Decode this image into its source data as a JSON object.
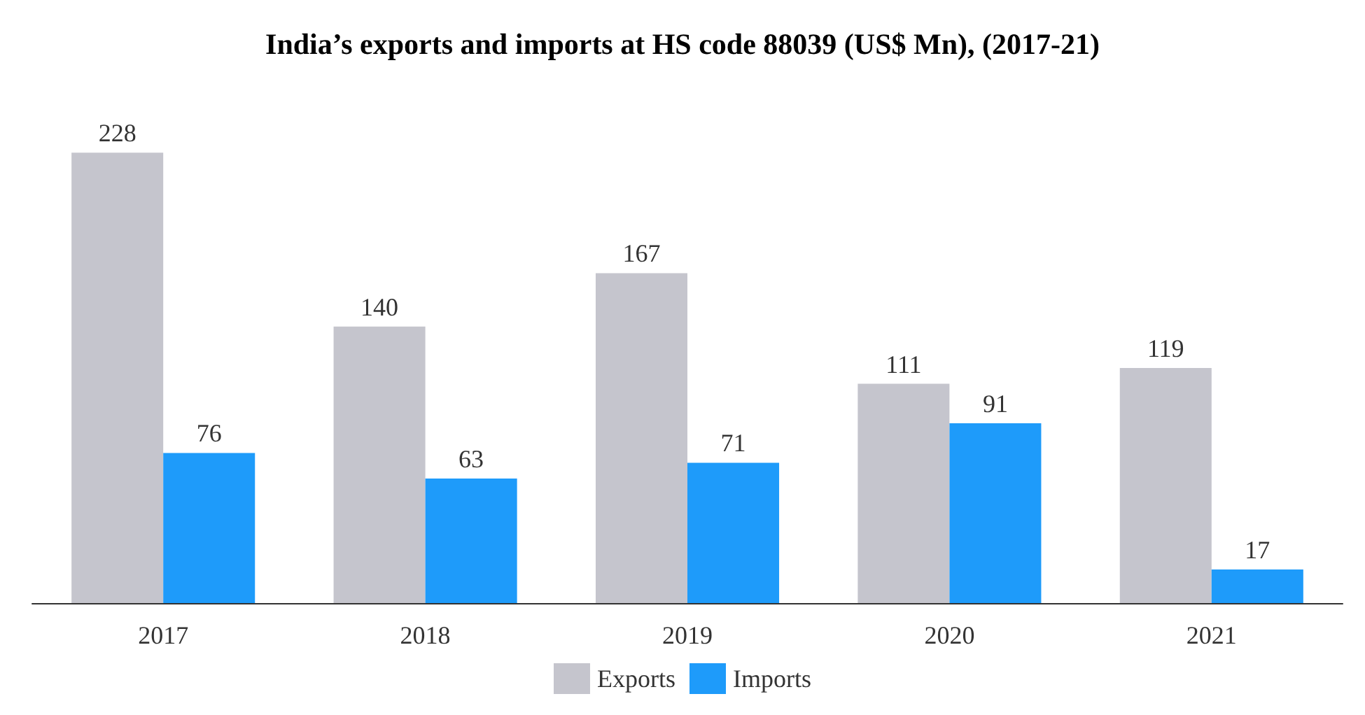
{
  "chart_data": {
    "type": "bar",
    "title": "India’s exports and imports at HS code 88039 (US$ Mn), (2017-21)",
    "categories": [
      "2017",
      "2018",
      "2019",
      "2020",
      "2021"
    ],
    "series": [
      {
        "name": "Exports",
        "color": "#c5c5cd",
        "values": [
          228,
          140,
          167,
          111,
          119
        ]
      },
      {
        "name": "Imports",
        "color": "#1e9bfa",
        "values": [
          76,
          63,
          71,
          91,
          17
        ]
      }
    ],
    "data_labels": true,
    "legend": "bottom",
    "grid": false,
    "tick_labels": "x"
  }
}
